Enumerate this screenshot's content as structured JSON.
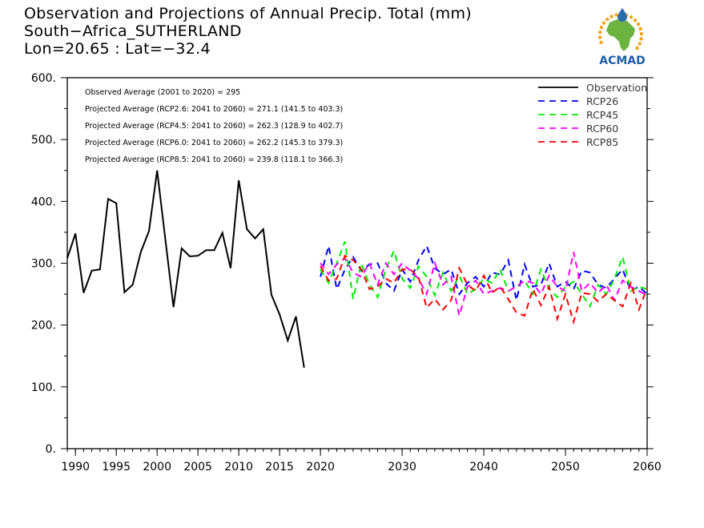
{
  "header": {
    "title": "Observation and Projections of Annual Precip. Total (mm)",
    "location": "South−Africa_SUTHERLAND",
    "coords": "Lon=20.65 : Lat=−32.4"
  },
  "logo": {
    "text": "ACMAD",
    "colors": {
      "africa": "#6db33f",
      "ring": "#f2a41a",
      "drop": "#2b6cb0",
      "text": "#1f5fa8"
    }
  },
  "chart_data": {
    "type": "line",
    "xlim": [
      1989,
      2060
    ],
    "ylim": [
      0,
      600
    ],
    "grid": false,
    "legend_position": "top-right",
    "x_ticks": [
      1990,
      1995,
      2000,
      2005,
      2010,
      2015,
      2020,
      2030,
      2040,
      2050,
      2060
    ],
    "y_ticks": [
      0,
      100,
      200,
      300,
      400,
      500,
      600
    ],
    "y_tick_labels": [
      "0.",
      "100.",
      "200.",
      "300.",
      "400.",
      "500.",
      "600."
    ],
    "annotations": [
      "Observed Average (2001 to 2020) = 295",
      "Projected Average (RCP2.6: 2041 to 2060) = 271.1 (141.5 to 403.3)",
      "Projected Average (RCP4.5: 2041 to 2060) = 262.3 (128.9 to 402.7)",
      "Projected Average (RCP6.0: 2041 to 2060) = 262.2 (145.3 to 379.3)",
      "Projected Average (RCP8.5: 2041 to 2060) = 239.8 (118.1 to 366.3)"
    ],
    "series": [
      {
        "name": "Observation",
        "color": "#000000",
        "dashed": false,
        "x": [
          1989,
          1990,
          1991,
          1992,
          1993,
          1994,
          1995,
          1996,
          1997,
          1998,
          1999,
          2000,
          2001,
          2002,
          2003,
          2004,
          2005,
          2006,
          2007,
          2008,
          2009,
          2010,
          2011,
          2012,
          2013,
          2014,
          2015,
          2016,
          2017,
          2018,
          2019,
          2020
        ],
        "y": [
          308,
          348,
          252,
          288,
          290,
          404,
          397,
          253,
          265,
          318,
          352,
          450,
          339,
          229,
          324,
          311,
          312,
          321,
          321,
          349,
          292,
          434,
          355,
          340,
          355,
          249,
          217,
          175,
          214,
          131,
          null,
          null
        ]
      },
      {
        "name": "RCP26",
        "color": "#0000ff",
        "dashed": true,
        "x": [
          2020,
          2021,
          2022,
          2023,
          2024,
          2025,
          2026,
          2027,
          2028,
          2029,
          2030,
          2031,
          2032,
          2033,
          2034,
          2035,
          2036,
          2037,
          2038,
          2039,
          2040,
          2041,
          2042,
          2043,
          2044,
          2045,
          2046,
          2047,
          2048,
          2049,
          2050,
          2051,
          2052,
          2053,
          2054,
          2055,
          2056,
          2057,
          2058,
          2059,
          2060
        ],
        "y": [
          278,
          328,
          258,
          290,
          310,
          288,
          298,
          300,
          268,
          255,
          290,
          270,
          305,
          328,
          292,
          282,
          290,
          250,
          268,
          278,
          262,
          285,
          282,
          305,
          240,
          298,
          262,
          265,
          300,
          262,
          270,
          258,
          288,
          285,
          265,
          260,
          275,
          290,
          255,
          262,
          250
        ]
      },
      {
        "name": "RCP45",
        "color": "#00ee00",
        "dashed": true,
        "x": [
          2020,
          2021,
          2022,
          2023,
          2024,
          2025,
          2026,
          2027,
          2028,
          2029,
          2030,
          2031,
          2032,
          2033,
          2034,
          2035,
          2036,
          2037,
          2038,
          2039,
          2040,
          2041,
          2042,
          2043,
          2044,
          2045,
          2046,
          2047,
          2048,
          2049,
          2050,
          2051,
          2052,
          2053,
          2054,
          2055,
          2056,
          2057,
          2058,
          2059,
          2060
        ],
        "y": [
          290,
          268,
          300,
          335,
          242,
          300,
          265,
          245,
          290,
          320,
          275,
          260,
          295,
          278,
          248,
          285,
          255,
          280,
          250,
          258,
          275,
          268,
          290,
          255,
          262,
          272,
          250,
          290,
          258,
          245,
          262,
          270,
          250,
          230,
          265,
          250,
          275,
          310,
          255,
          262,
          258
        ]
      },
      {
        "name": "RCP60",
        "color": "#ff00ff",
        "dashed": true,
        "x": [
          2020,
          2021,
          2022,
          2023,
          2024,
          2025,
          2026,
          2027,
          2028,
          2029,
          2030,
          2031,
          2032,
          2033,
          2034,
          2035,
          2036,
          2037,
          2038,
          2039,
          2040,
          2041,
          2042,
          2043,
          2044,
          2045,
          2046,
          2047,
          2048,
          2049,
          2050,
          2051,
          2052,
          2053,
          2054,
          2055,
          2056,
          2057,
          2058,
          2059,
          2060
        ],
        "y": [
          300,
          282,
          298,
          308,
          285,
          278,
          300,
          265,
          300,
          282,
          300,
          288,
          275,
          250,
          300,
          265,
          278,
          215,
          262,
          272,
          250,
          255,
          260,
          255,
          262,
          272,
          268,
          250,
          280,
          262,
          255,
          318,
          255,
          268,
          252,
          265,
          240,
          272,
          262,
          255,
          248
        ]
      },
      {
        "name": "RCP85",
        "color": "#ff0000",
        "dashed": true,
        "x": [
          2020,
          2021,
          2022,
          2023,
          2024,
          2025,
          2026,
          2027,
          2028,
          2029,
          2030,
          2031,
          2032,
          2033,
          2034,
          2035,
          2036,
          2037,
          2038,
          2039,
          2040,
          2041,
          2042,
          2043,
          2044,
          2045,
          2046,
          2047,
          2048,
          2049,
          2050,
          2051,
          2052,
          2053,
          2054,
          2055,
          2056,
          2057,
          2058,
          2059,
          2060
        ],
        "y": [
          295,
          272,
          275,
          312,
          305,
          290,
          258,
          262,
          275,
          268,
          290,
          290,
          278,
          228,
          242,
          225,
          240,
          292,
          265,
          255,
          280,
          252,
          262,
          242,
          220,
          215,
          258,
          232,
          262,
          210,
          250,
          205,
          252,
          250,
          238,
          250,
          240,
          230,
          268,
          225,
          260
        ]
      }
    ]
  }
}
